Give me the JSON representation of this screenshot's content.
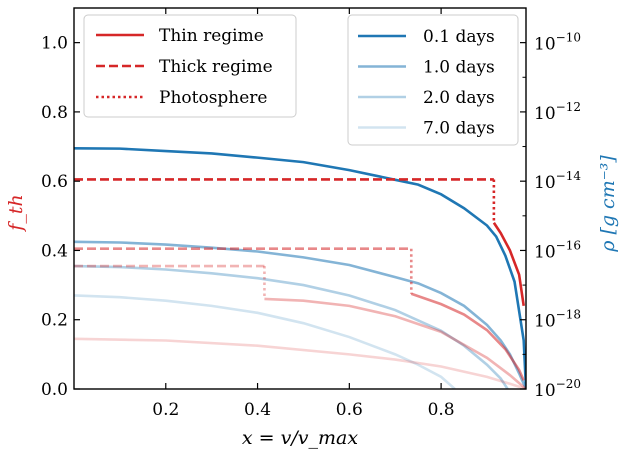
{
  "chart_data": {
    "type": "line",
    "xlabel": "x = v/v_max",
    "ylabel_left": "f_th",
    "ylabel_right": "ρ [g cm⁻³]",
    "xlim": [
      0.0,
      0.985
    ],
    "ylim_left": [
      0.0,
      1.1
    ],
    "ylim_right_log10": [
      -20,
      -9.0
    ],
    "x_ticks": [
      "0.2",
      "0.4",
      "0.6",
      "0.8"
    ],
    "x_tick_values": [
      0.2,
      0.4,
      0.6,
      0.8
    ],
    "y_left_ticks": [
      "0.0",
      "0.2",
      "0.4",
      "0.6",
      "0.8",
      "1.0"
    ],
    "y_left_tick_values": [
      0.0,
      0.2,
      0.4,
      0.6,
      0.8,
      1.0
    ],
    "y_right_ticks": [
      "10",
      "10",
      "10",
      "10",
      "10",
      "10"
    ],
    "y_right_tick_exponents": [
      "−20",
      "−18",
      "−16",
      "−14",
      "−12",
      "−10"
    ],
    "y_right_tick_values": [
      -20,
      -18,
      -16,
      -14,
      -12,
      -10
    ],
    "colors": {
      "red": "#d62728",
      "blue": "#1f77b4",
      "left_label": "#d62728",
      "right_label": "#1f77b4"
    },
    "legend_left": {
      "placement": "top-left",
      "entries": [
        {
          "label": "Thin regime",
          "style": "solid"
        },
        {
          "label": "Thick regime",
          "style": "dashed"
        },
        {
          "label": "Photosphere",
          "style": "dotted"
        }
      ]
    },
    "legend_right": {
      "placement": "top-right",
      "entries": [
        {
          "label": "0.1 days",
          "opacity": 1.0
        },
        {
          "label": "1.0 days",
          "opacity": 0.55
        },
        {
          "label": "2.0 days",
          "opacity": 0.35
        },
        {
          "label": "7.0 days",
          "opacity": 0.2
        }
      ]
    },
    "series": [
      {
        "name": "0.1 days",
        "opacity": 1.0,
        "density_log10": [
          [
            0.0,
            -13.05
          ],
          [
            0.1,
            -13.06
          ],
          [
            0.2,
            -13.13
          ],
          [
            0.3,
            -13.2
          ],
          [
            0.4,
            -13.32
          ],
          [
            0.5,
            -13.45
          ],
          [
            0.6,
            -13.68
          ],
          [
            0.7,
            -13.96
          ],
          [
            0.75,
            -14.1
          ],
          [
            0.8,
            -14.38
          ],
          [
            0.85,
            -14.78
          ],
          [
            0.9,
            -15.28
          ],
          [
            0.92,
            -15.6
          ],
          [
            0.94,
            -16.15
          ],
          [
            0.96,
            -16.9
          ],
          [
            0.98,
            -18.6
          ],
          [
            0.985,
            -20.0
          ]
        ],
        "thick": [
          [
            0.0,
            0.605
          ],
          [
            0.915,
            0.605
          ]
        ],
        "photosphere": [
          [
            0.915,
            0.605
          ],
          [
            0.915,
            0.48
          ]
        ],
        "thin": [
          [
            0.915,
            0.48
          ],
          [
            0.93,
            0.45
          ],
          [
            0.95,
            0.4
          ],
          [
            0.97,
            0.33
          ],
          [
            0.98,
            0.24
          ]
        ]
      },
      {
        "name": "1.0 days",
        "opacity": 0.55,
        "density_log10": [
          [
            0.0,
            -15.75
          ],
          [
            0.1,
            -15.77
          ],
          [
            0.2,
            -15.83
          ],
          [
            0.3,
            -15.92
          ],
          [
            0.4,
            -16.03
          ],
          [
            0.5,
            -16.2
          ],
          [
            0.6,
            -16.42
          ],
          [
            0.7,
            -16.77
          ],
          [
            0.75,
            -16.95
          ],
          [
            0.8,
            -17.23
          ],
          [
            0.85,
            -17.6
          ],
          [
            0.9,
            -18.15
          ],
          [
            0.93,
            -18.6
          ],
          [
            0.95,
            -19.0
          ],
          [
            0.97,
            -19.55
          ],
          [
            0.985,
            -20.0
          ]
        ],
        "thick": [
          [
            0.0,
            0.405
          ],
          [
            0.735,
            0.405
          ]
        ],
        "photosphere": [
          [
            0.735,
            0.405
          ],
          [
            0.735,
            0.275
          ]
        ],
        "thin": [
          [
            0.735,
            0.275
          ],
          [
            0.8,
            0.245
          ],
          [
            0.85,
            0.215
          ],
          [
            0.9,
            0.17
          ],
          [
            0.94,
            0.115
          ],
          [
            0.97,
            0.055
          ],
          [
            0.98,
            0.025
          ]
        ]
      },
      {
        "name": "2.0 days",
        "opacity": 0.35,
        "density_log10": [
          [
            0.0,
            -16.45
          ],
          [
            0.1,
            -16.48
          ],
          [
            0.2,
            -16.55
          ],
          [
            0.3,
            -16.66
          ],
          [
            0.4,
            -16.8
          ],
          [
            0.5,
            -17.0
          ],
          [
            0.6,
            -17.3
          ],
          [
            0.7,
            -17.72
          ],
          [
            0.8,
            -18.32
          ],
          [
            0.85,
            -18.75
          ],
          [
            0.9,
            -19.3
          ],
          [
            0.93,
            -19.7
          ],
          [
            0.945,
            -20.0
          ]
        ],
        "thick": [
          [
            0.0,
            0.355
          ],
          [
            0.415,
            0.355
          ]
        ],
        "photosphere": [
          [
            0.415,
            0.355
          ],
          [
            0.415,
            0.26
          ]
        ],
        "thin": [
          [
            0.415,
            0.26
          ],
          [
            0.5,
            0.255
          ],
          [
            0.6,
            0.24
          ],
          [
            0.7,
            0.21
          ],
          [
            0.8,
            0.165
          ],
          [
            0.9,
            0.09
          ],
          [
            0.95,
            0.04
          ],
          [
            0.985,
            0.0
          ]
        ]
      },
      {
        "name": "7.0 days",
        "opacity": 0.2,
        "density_log10": [
          [
            0.0,
            -17.3
          ],
          [
            0.1,
            -17.35
          ],
          [
            0.2,
            -17.45
          ],
          [
            0.3,
            -17.6
          ],
          [
            0.4,
            -17.8
          ],
          [
            0.5,
            -18.1
          ],
          [
            0.6,
            -18.5
          ],
          [
            0.7,
            -19.0
          ],
          [
            0.75,
            -19.3
          ],
          [
            0.8,
            -19.65
          ],
          [
            0.83,
            -20.0
          ]
        ],
        "thick": [
          [
            0.0,
            0.145
          ],
          [
            0.0,
            0.145
          ]
        ],
        "photosphere": [
          [
            0.0,
            0.145
          ],
          [
            0.0,
            0.145
          ]
        ],
        "thin": [
          [
            0.0,
            0.145
          ],
          [
            0.2,
            0.14
          ],
          [
            0.4,
            0.125
          ],
          [
            0.6,
            0.1
          ],
          [
            0.7,
            0.085
          ],
          [
            0.8,
            0.065
          ],
          [
            0.9,
            0.035
          ],
          [
            0.95,
            0.015
          ],
          [
            0.985,
            0.0
          ]
        ]
      }
    ]
  }
}
